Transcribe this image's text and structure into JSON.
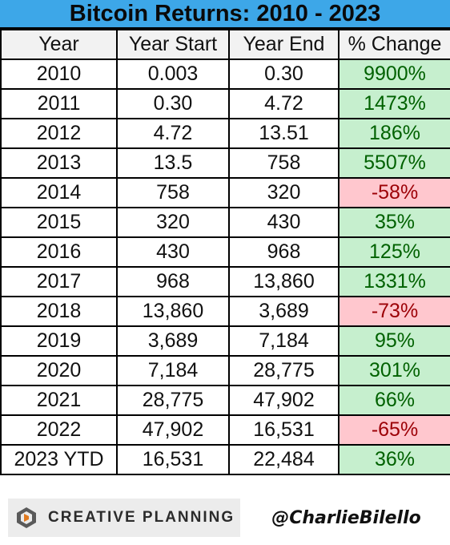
{
  "title": "Bitcoin Returns: 2010 - 2023",
  "chart_data": {
    "type": "table",
    "title": "Bitcoin Returns: 2010 - 2023",
    "columns": [
      "Year",
      "Year Start",
      "Year End",
      "% Change"
    ],
    "rows": [
      {
        "year": "2010",
        "start": "0.003",
        "end": "0.30",
        "change": "9900%",
        "sign": "pos"
      },
      {
        "year": "2011",
        "start": "0.30",
        "end": "4.72",
        "change": "1473%",
        "sign": "pos"
      },
      {
        "year": "2012",
        "start": "4.72",
        "end": "13.51",
        "change": "186%",
        "sign": "pos"
      },
      {
        "year": "2013",
        "start": "13.5",
        "end": "758",
        "change": "5507%",
        "sign": "pos"
      },
      {
        "year": "2014",
        "start": "758",
        "end": "320",
        "change": "-58%",
        "sign": "neg"
      },
      {
        "year": "2015",
        "start": "320",
        "end": "430",
        "change": "35%",
        "sign": "pos"
      },
      {
        "year": "2016",
        "start": "430",
        "end": "968",
        "change": "125%",
        "sign": "pos"
      },
      {
        "year": "2017",
        "start": "968",
        "end": "13,860",
        "change": "1331%",
        "sign": "pos"
      },
      {
        "year": "2018",
        "start": "13,860",
        "end": "3,689",
        "change": "-73%",
        "sign": "neg"
      },
      {
        "year": "2019",
        "start": "3,689",
        "end": "7,184",
        "change": "95%",
        "sign": "pos"
      },
      {
        "year": "2020",
        "start": "7,184",
        "end": "28,775",
        "change": "301%",
        "sign": "pos"
      },
      {
        "year": "2021",
        "start": "28,775",
        "end": "47,902",
        "change": "66%",
        "sign": "pos"
      },
      {
        "year": "2022",
        "start": "47,902",
        "end": "16,531",
        "change": "-65%",
        "sign": "neg"
      },
      {
        "year": "2023 YTD",
        "start": "16,531",
        "end": "22,484",
        "change": "36%",
        "sign": "pos"
      }
    ]
  },
  "colors": {
    "title_bg": "#3da7e8",
    "header_bg": "#f2f2f2",
    "positive_bg": "#c6efce",
    "positive_text": "#006100",
    "negative_bg": "#ffc7ce",
    "negative_text": "#9c0006"
  },
  "footer": {
    "brand_icon": "creative-planning-logo-icon",
    "brand": "CREATIVE PLANNING",
    "handle": "@CharlieBilello"
  }
}
